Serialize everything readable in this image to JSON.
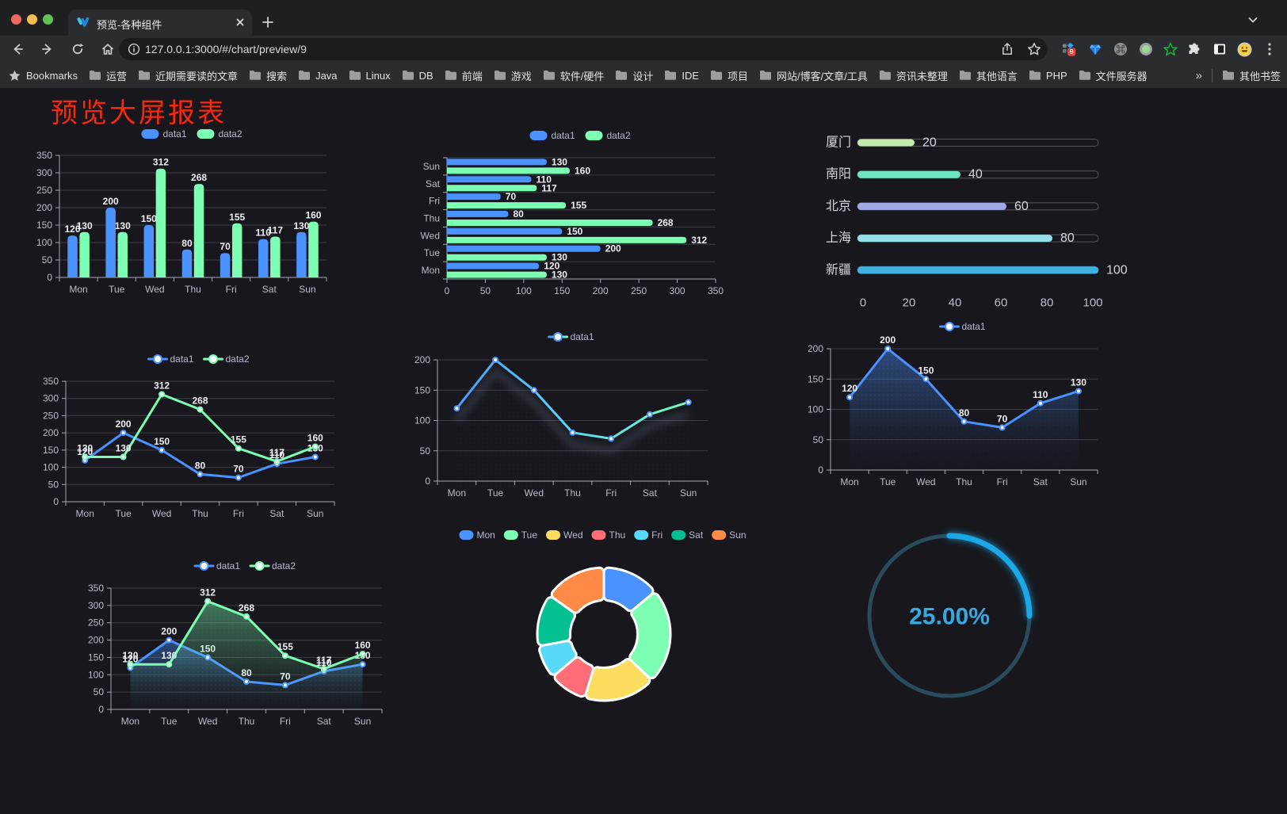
{
  "browser": {
    "tab_title": "预览-各种组件",
    "url": "127.0.0.1:3000/#/chart/preview/9",
    "bookmarks_label": "Bookmarks",
    "bookmark_folders": [
      "运营",
      "近期需要读的文章",
      "搜索",
      "Java",
      "Linux",
      "DB",
      "前端",
      "游戏",
      "软件/硬件",
      "设计",
      "IDE",
      "项目",
      "网站/博客/文章/工具",
      "资讯未整理",
      "其他语言",
      "PHP",
      "文件服务器"
    ],
    "overflow_chevron": "»",
    "other_bookmarks_label": "其他书签",
    "extension_badge": "9"
  },
  "page": {
    "title": "预览大屏报表",
    "title_color": "#f5290e",
    "background": "#17171d"
  },
  "chart_data": [
    {
      "id": "bar-grouped",
      "type": "bar",
      "title": "",
      "categories": [
        "Mon",
        "Tue",
        "Wed",
        "Thu",
        "Fri",
        "Sat",
        "Sun"
      ],
      "series": [
        {
          "name": "data1",
          "color": "#4992ff",
          "values": [
            120,
            200,
            150,
            80,
            70,
            110,
            130
          ]
        },
        {
          "name": "data2",
          "color": "#7cffb2",
          "values": [
            130,
            130,
            312,
            268,
            155,
            117,
            160
          ]
        }
      ],
      "ylim": [
        0,
        350
      ],
      "ytick_step": 50,
      "show_labels": true,
      "legend": [
        "data1",
        "data2"
      ],
      "legend_position": "top"
    },
    {
      "id": "bar-horizontal",
      "type": "hbar",
      "title": "",
      "categories": [
        "Mon",
        "Tue",
        "Wed",
        "Thu",
        "Fri",
        "Sat",
        "Sun"
      ],
      "series": [
        {
          "name": "data1",
          "color": "#4992ff",
          "values": [
            120,
            200,
            150,
            80,
            70,
            110,
            130
          ]
        },
        {
          "name": "data2",
          "color": "#7cffb2",
          "values": [
            130,
            130,
            312,
            268,
            155,
            117,
            160
          ]
        }
      ],
      "xlim": [
        0,
        350
      ],
      "xtick_step": 50,
      "show_labels": true,
      "legend": [
        "data1",
        "data2"
      ],
      "legend_position": "top"
    },
    {
      "id": "progress-list",
      "type": "progress",
      "title": "",
      "xmax": 100,
      "xticks": [
        0,
        20,
        40,
        60,
        80,
        100
      ],
      "rows": [
        {
          "label": "厦门",
          "value": 20,
          "color": "#c4ebad"
        },
        {
          "label": "南阳",
          "value": 40,
          "color": "#6be6c1"
        },
        {
          "label": "北京",
          "value": 60,
          "color": "#a0a7e6"
        },
        {
          "label": "上海",
          "value": 80,
          "color": "#96dee8"
        },
        {
          "label": "新疆",
          "value": 100,
          "color": "#3fb1e3"
        }
      ]
    },
    {
      "id": "line-two-series",
      "type": "line",
      "title": "",
      "categories": [
        "Mon",
        "Tue",
        "Wed",
        "Thu",
        "Fri",
        "Sat",
        "Sun"
      ],
      "series": [
        {
          "name": "data1",
          "color": "#4992ff",
          "values": [
            120,
            200,
            150,
            80,
            70,
            110,
            130
          ]
        },
        {
          "name": "data2",
          "color": "#7cffb2",
          "values": [
            130,
            130,
            312,
            268,
            155,
            117,
            160
          ]
        }
      ],
      "ylim": [
        0,
        350
      ],
      "ytick_step": 50,
      "show_labels": true,
      "legend": [
        "data1",
        "data2"
      ],
      "legend_position": "top"
    },
    {
      "id": "line-gradient",
      "type": "line",
      "title": "",
      "categories": [
        "Mon",
        "Tue",
        "Wed",
        "Thu",
        "Fri",
        "Sat",
        "Sun"
      ],
      "series": [
        {
          "name": "data1",
          "color": "#4992ff",
          "gradient": [
            "#4992ff",
            "#58d9f9",
            "#7cffb2"
          ],
          "shadow": true,
          "values": [
            120,
            200,
            150,
            80,
            70,
            110,
            130
          ]
        }
      ],
      "ylim": [
        0,
        200
      ],
      "ytick_step": 50,
      "show_labels": false,
      "legend": [
        "data1"
      ],
      "legend_position": "top"
    },
    {
      "id": "line-area",
      "type": "line",
      "title": "",
      "categories": [
        "Mon",
        "Tue",
        "Wed",
        "Thu",
        "Fri",
        "Sat",
        "Sun"
      ],
      "series": [
        {
          "name": "data1",
          "color": "#4992ff",
          "area": true,
          "values": [
            120,
            200,
            150,
            80,
            70,
            110,
            130
          ]
        }
      ],
      "ylim": [
        0,
        200
      ],
      "ytick_step": 50,
      "show_labels": true,
      "legend": [
        "data1"
      ],
      "legend_position": "top"
    },
    {
      "id": "line-area-two",
      "type": "line",
      "title": "",
      "categories": [
        "Mon",
        "Tue",
        "Wed",
        "Thu",
        "Fri",
        "Sat",
        "Sun"
      ],
      "series": [
        {
          "name": "data1",
          "color": "#4992ff",
          "area": true,
          "values": [
            120,
            200,
            150,
            80,
            70,
            110,
            130
          ]
        },
        {
          "name": "data2",
          "color": "#7cffb2",
          "area": true,
          "values": [
            130,
            130,
            312,
            268,
            155,
            117,
            160
          ]
        }
      ],
      "ylim": [
        0,
        350
      ],
      "ytick_step": 50,
      "show_labels": true,
      "legend": [
        "data1",
        "data2"
      ],
      "legend_position": "top"
    },
    {
      "id": "donut",
      "type": "donut",
      "title": "",
      "legend_position": "top",
      "slices": [
        {
          "label": "Mon",
          "value": 120,
          "color": "#4992ff"
        },
        {
          "label": "Tue",
          "value": 200,
          "color": "#7cffb2"
        },
        {
          "label": "Wed",
          "value": 150,
          "color": "#fddd60"
        },
        {
          "label": "Thu",
          "value": 80,
          "color": "#ff6e76"
        },
        {
          "label": "Fri",
          "value": 70,
          "color": "#58d9f9"
        },
        {
          "label": "Sat",
          "value": 110,
          "color": "#05c091"
        },
        {
          "label": "Sun",
          "value": 130,
          "color": "#ff8a45"
        }
      ]
    },
    {
      "id": "gauge",
      "type": "gauge",
      "title": "",
      "value": 25,
      "max": 100,
      "display": "25.00%",
      "arc_color": "#1aa8e8",
      "track_color": "#2a4b5c",
      "text_color": "#38a9e0"
    }
  ]
}
